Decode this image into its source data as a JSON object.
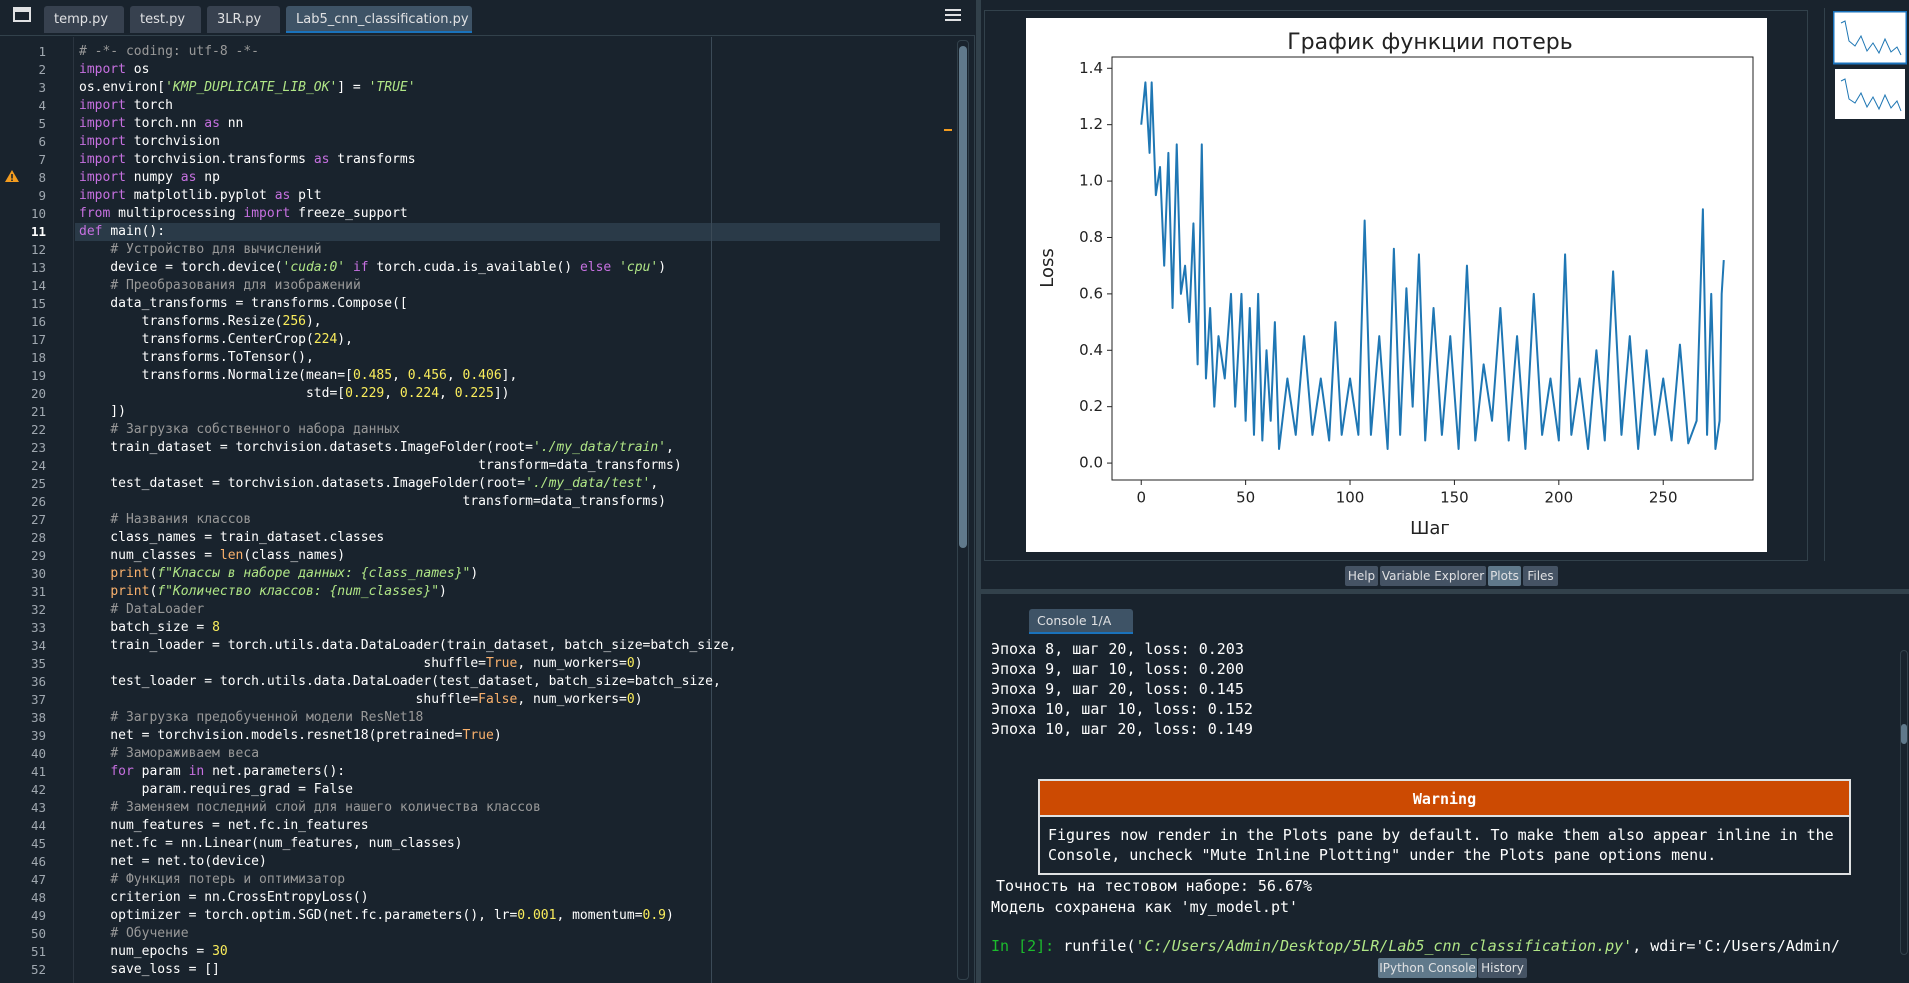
{
  "editor": {
    "tabs": [
      "temp.py",
      "test.py",
      "3LR.py",
      "Lab5_cnn_classification.py"
    ],
    "line_numbers": [
      1,
      2,
      3,
      4,
      5,
      6,
      7,
      8,
      9,
      10,
      11,
      12,
      13,
      14,
      15,
      16,
      17,
      18,
      19,
      20,
      21,
      22,
      23,
      24,
      25,
      26,
      27,
      28,
      29,
      30,
      31,
      32,
      33,
      34,
      35,
      36,
      37,
      38,
      39,
      40,
      41,
      42,
      43,
      44,
      45,
      46,
      47,
      48,
      49,
      50,
      51,
      52
    ],
    "lines": [
      "# -*- coding: utf-8 -*-",
      "import os",
      "os.environ['KMP_DUPLICATE_LIB_OK'] = 'TRUE'",
      "import torch",
      "import torch.nn as nn",
      "import torchvision",
      "import torchvision.transforms as transforms",
      "import numpy as np",
      "import matplotlib.pyplot as plt",
      "from multiprocessing import freeze_support",
      "def main():",
      "    # Устройство для вычислений",
      "    device = torch.device('cuda:0' if torch.cuda.is_available() else 'cpu')",
      "    # Преобразования для изображений",
      "    data_transforms = transforms.Compose([",
      "        transforms.Resize(256),",
      "        transforms.CenterCrop(224),",
      "        transforms.ToTensor(),",
      "        transforms.Normalize(mean=[0.485, 0.456, 0.406],",
      "                             std=[0.229, 0.224, 0.225])",
      "    ])",
      "    # Загрузка собственного набора данных",
      "    train_dataset = torchvision.datasets.ImageFolder(root='./my_data/train',",
      "                                                   transform=data_transforms)",
      "    test_dataset = torchvision.datasets.ImageFolder(root='./my_data/test',",
      "                                                 transform=data_transforms)",
      "    # Названия классов",
      "    class_names = train_dataset.classes",
      "    num_classes = len(class_names)",
      "    print(f\"Классы в наборе данных: {class_names}\")",
      "    print(f\"Количество классов: {num_classes}\")",
      "    # DataLoader",
      "    batch_size = 8",
      "    train_loader = torch.utils.data.DataLoader(train_dataset, batch_size=batch_size,",
      "                                            shuffle=True, num_workers=0)",
      "    test_loader = torch.utils.data.DataLoader(test_dataset, batch_size=batch_size,",
      "                                           shuffle=False, num_workers=0)",
      "    # Загрузка предобученной модели ResNet18",
      "    net = torchvision.models.resnet18(pretrained=True)",
      "    # Замораживаем веса",
      "    for param in net.parameters():",
      "        param.requires_grad = False",
      "    # Заменяем последний слой для нашего количества классов",
      "    num_features = net.fc.in_features",
      "    net.fc = nn.Linear(num_features, num_classes)",
      "    net = net.to(device)",
      "    # Функция потерь и оптимизатор",
      "    criterion = nn.CrossEntropyLoss()",
      "    optimizer = torch.optim.SGD(net.fc.parameters(), lr=0.001, momentum=0.9)",
      "    # Обучение",
      "    num_epochs = 30",
      "    save_loss = []"
    ]
  },
  "chart_data": {
    "type": "line",
    "title": "График функции потерь",
    "x_label": "Шаг",
    "y_label": "Loss",
    "color": "#1f77b4",
    "x": [
      0,
      2,
      4,
      5,
      7,
      9,
      11,
      13,
      15,
      17,
      19,
      21,
      23,
      25,
      27,
      29,
      31,
      33,
      35,
      37,
      40,
      43,
      45,
      48,
      50,
      52,
      54,
      56,
      58,
      60,
      62,
      64,
      66,
      70,
      74,
      78,
      82,
      86,
      90,
      93,
      96,
      100,
      104,
      107,
      110,
      114,
      118,
      121,
      124,
      127,
      130,
      133,
      136,
      140,
      144,
      148,
      152,
      156,
      160,
      164,
      168,
      172,
      176,
      180,
      184,
      188,
      192,
      196,
      200,
      203,
      206,
      210,
      214,
      218,
      222,
      226,
      230,
      234,
      238,
      242,
      246,
      250,
      254,
      258,
      262,
      266,
      269,
      271,
      273,
      275,
      277,
      278,
      279
    ],
    "values": [
      1.2,
      1.35,
      1.1,
      1.35,
      0.95,
      1.05,
      0.7,
      1.1,
      0.55,
      1.13,
      0.6,
      0.7,
      0.5,
      0.85,
      0.35,
      1.13,
      0.3,
      0.55,
      0.2,
      0.45,
      0.3,
      0.6,
      0.2,
      0.6,
      0.15,
      0.55,
      0.1,
      0.6,
      0.08,
      0.4,
      0.15,
      0.5,
      0.05,
      0.3,
      0.1,
      0.45,
      0.1,
      0.3,
      0.08,
      0.5,
      0.1,
      0.3,
      0.1,
      0.86,
      0.1,
      0.45,
      0.05,
      0.76,
      0.1,
      0.62,
      0.2,
      0.74,
      0.08,
      0.55,
      0.1,
      0.45,
      0.05,
      0.7,
      0.08,
      0.35,
      0.15,
      0.55,
      0.08,
      0.45,
      0.05,
      0.6,
      0.1,
      0.3,
      0.08,
      0.74,
      0.1,
      0.3,
      0.05,
      0.4,
      0.08,
      0.68,
      0.1,
      0.45,
      0.05,
      0.4,
      0.1,
      0.3,
      0.08,
      0.42,
      0.07,
      0.15,
      0.9,
      0.1,
      0.6,
      0.05,
      0.15,
      0.6,
      0.72
    ],
    "xlim": [
      -14,
      293
    ],
    "ylim": [
      -0.06,
      1.44
    ],
    "xticks": [
      0,
      50,
      100,
      150,
      200,
      250
    ],
    "yticks": [
      {
        "value": 0,
        "label": "0.0"
      },
      0.2,
      0.4,
      0.6,
      0.8,
      {
        "value": 1,
        "label": "1.0"
      },
      1.2,
      1.4
    ]
  },
  "plots_pane": {
    "tabs": [
      "Help",
      "Variable Explorer",
      "Plots",
      "Files"
    ]
  },
  "console": {
    "tab": "Console 1/A",
    "output": [
      "Эпоха 8, шаг 20, loss: 0.203",
      "Эпоха 9, шаг 10, loss: 0.200",
      "Эпоха 9, шаг 20, loss: 0.145",
      "Эпоха 10, шаг 10, loss: 0.152",
      "Эпоха 10, шаг 20, loss: 0.149"
    ],
    "warning": {
      "title": "Warning",
      "message": "Figures now render in the Plots pane by default. To make them also appear inline in the Console, uncheck \"Mute Inline Plotting\" under the Plots pane options menu."
    },
    "result": [
      "Точность на тестовом наборе: 56.67%",
      "Модель сохранена как 'my_model.pt'"
    ],
    "prompt": "In [2]:",
    "command": "runfile('C:/Users/Admin/Desktop/5LR/Lab5_cnn_classification.py', wdir='C:/Users/Admin/",
    "tabs": [
      "IPython Console",
      "History"
    ]
  }
}
